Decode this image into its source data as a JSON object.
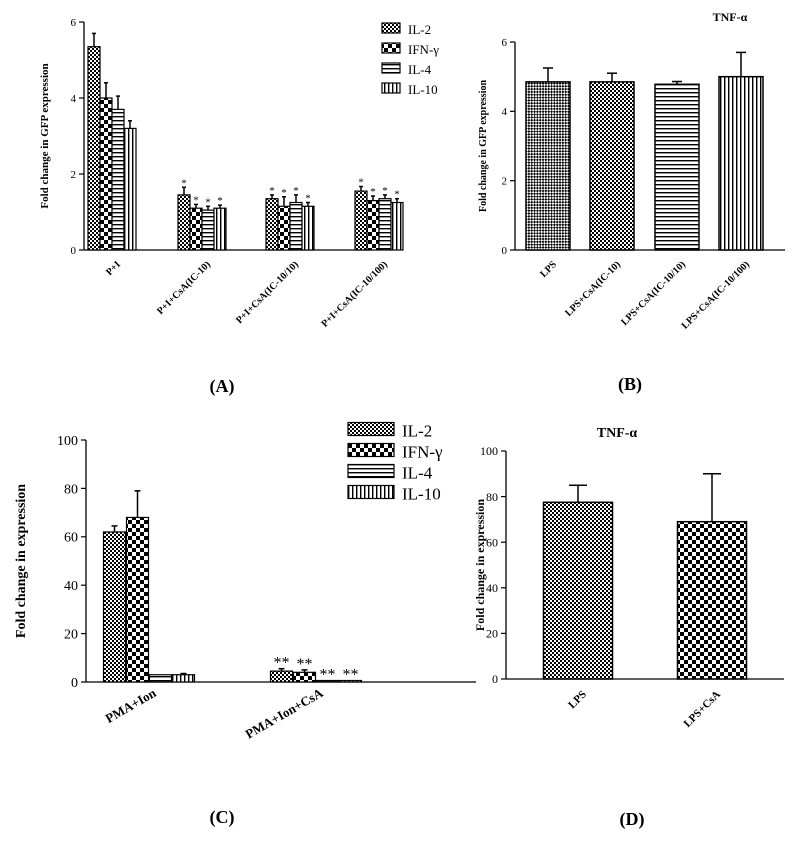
{
  "figure": {
    "panel_labels": [
      "(A)",
      "(B)",
      "(C)",
      "(D)"
    ]
  },
  "patterns": {
    "IL-2": "checker",
    "IFN-γ": "bigchecker",
    "IL-4": "hlines",
    "IL-10": "vlines",
    "LPS_B": "diagcheck"
  },
  "chart_data": [
    {
      "panel": "A",
      "type": "bar",
      "title": "",
      "ylabel": "Fold change in GFP expression",
      "xlabel": "",
      "ylim": [
        0,
        6
      ],
      "yticks": [
        "0",
        "2",
        "4",
        "6"
      ],
      "categories": [
        "P+I",
        "P+I+CsA(IC-10)",
        "P+I+CsA(IC-10/10)",
        "P+I+CsA(IC-10/100)"
      ],
      "series": [
        {
          "name": "IL-2",
          "values": [
            5.35,
            1.45,
            1.35,
            1.55
          ],
          "errors": [
            0.35,
            0.2,
            0.1,
            0.12
          ],
          "marks": [
            "",
            "*",
            "*",
            "*"
          ]
        },
        {
          "name": "IFN-γ",
          "values": [
            4.0,
            1.1,
            1.15,
            1.3
          ],
          "errors": [
            0.4,
            0.1,
            0.25,
            0.12
          ],
          "marks": [
            "",
            "*",
            "*",
            "*"
          ]
        },
        {
          "name": "IL-4",
          "values": [
            3.7,
            1.05,
            1.25,
            1.35
          ],
          "errors": [
            0.35,
            0.1,
            0.2,
            0.1
          ],
          "marks": [
            "",
            "*",
            "*",
            "*"
          ]
        },
        {
          "name": "IL-10",
          "values": [
            3.2,
            1.1,
            1.15,
            1.25
          ],
          "errors": [
            0.2,
            0.08,
            0.1,
            0.1
          ],
          "marks": [
            "",
            "*",
            "*",
            "*"
          ]
        }
      ],
      "legend": {
        "position": "top-right",
        "entries": [
          "IL-2",
          "IFN-γ",
          "IL-4",
          "IL-10"
        ]
      }
    },
    {
      "panel": "B",
      "type": "bar",
      "title": "TNF-α",
      "ylabel": "Fold change in GFP expression",
      "xlabel": "",
      "ylim": [
        0,
        6
      ],
      "yticks": [
        "0",
        "2",
        "4",
        "6"
      ],
      "categories": [
        "LPS",
        "LPS+CsA(IC-10)",
        "LPS+CsA(IC-10/10)",
        "LPS+CsA(IC-10/100)"
      ],
      "values": [
        4.85,
        4.85,
        4.78,
        5.0
      ],
      "errors": [
        0.4,
        0.25,
        0.08,
        0.7
      ],
      "patterns": [
        "diagcheck",
        "checker",
        "hlines",
        "vlines"
      ]
    },
    {
      "panel": "C",
      "type": "bar",
      "title": "",
      "ylabel": "Fold change in expression",
      "xlabel": "",
      "ylim": [
        0,
        100
      ],
      "yticks": [
        "0",
        "20",
        "40",
        "60",
        "80",
        "100"
      ],
      "categories": [
        "PMA+Ion",
        "PMA+Ion+CsA"
      ],
      "series": [
        {
          "name": "IL-2",
          "values": [
            62,
            4.5
          ],
          "errors": [
            2.5,
            1
          ],
          "marks": [
            "",
            "**"
          ]
        },
        {
          "name": "IFN-γ",
          "values": [
            68,
            4
          ],
          "errors": [
            11,
            1
          ],
          "marks": [
            "",
            "**"
          ]
        },
        {
          "name": "IL-4",
          "values": [
            3,
            0.5
          ],
          "errors": [
            0,
            0
          ],
          "marks": [
            "",
            "**"
          ]
        },
        {
          "name": "IL-10",
          "values": [
            3,
            0.5
          ],
          "errors": [
            0.5,
            0
          ],
          "marks": [
            "",
            "**"
          ]
        }
      ],
      "legend": {
        "position": "top-right",
        "entries": [
          "IL-2",
          "IFN-γ",
          "IL-4",
          "IL-10"
        ]
      }
    },
    {
      "panel": "D",
      "type": "bar",
      "title": "TNF-α",
      "ylabel": "Fold change in expression",
      "xlabel": "",
      "ylim": [
        0,
        100
      ],
      "yticks": [
        "0",
        "20",
        "40",
        "60",
        "80",
        "100"
      ],
      "categories": [
        "LPS",
        "LPS+CsA"
      ],
      "values": [
        77.5,
        69
      ],
      "errors": [
        7.5,
        21
      ],
      "patterns": [
        "checker",
        "bigchecker"
      ]
    }
  ]
}
